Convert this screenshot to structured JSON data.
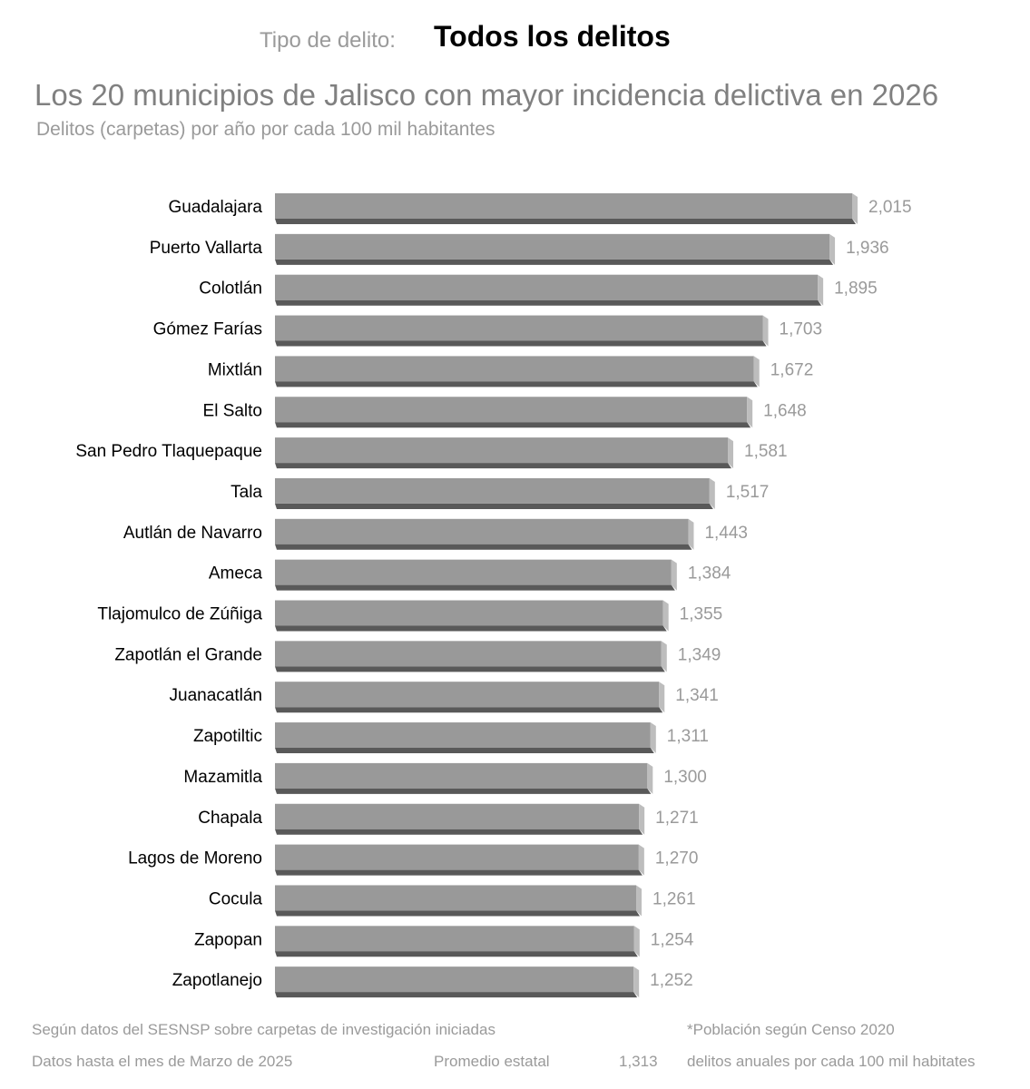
{
  "filter": {
    "label": "Tipo de delito:",
    "value": "Todos los delitos"
  },
  "chart_data": {
    "type": "bar",
    "orientation": "horizontal",
    "title": "Los 20 municipios de Jalisco con mayor incidencia delictiva en 2026",
    "subtitle": "Delitos (carpetas) por año por cada 100 mil habitantes",
    "categories": [
      "Guadalajara",
      "Puerto Vallarta",
      "Colotlán",
      "Gómez Farías",
      "Mixtlán",
      "El Salto",
      "San Pedro Tlaquepaque",
      "Tala",
      "Autlán de Navarro",
      "Ameca",
      "Tlajomulco de Zúñiga",
      "Zapotlán el Grande",
      "Juanacatlán",
      "Zapotiltic",
      "Mazamitla",
      "Chapala",
      "Lagos de Moreno",
      "Cocula",
      "Zapopan",
      "Zapotlanejo"
    ],
    "values": [
      2015,
      1936,
      1895,
      1703,
      1672,
      1648,
      1581,
      1517,
      1443,
      1384,
      1355,
      1349,
      1341,
      1311,
      1300,
      1271,
      1270,
      1261,
      1254,
      1252
    ],
    "value_labels": [
      "2,015",
      "1,936",
      "1,895",
      "1,703",
      "1,672",
      "1,648",
      "1,581",
      "1,517",
      "1,443",
      "1,384",
      "1,355",
      "1,349",
      "1,341",
      "1,311",
      "1,300",
      "1,271",
      "1,270",
      "1,261",
      "1,254",
      "1,252"
    ],
    "xlim": [
      0,
      2015
    ],
    "grid": false,
    "legend": "none",
    "colors": {
      "bar_face": "#999999",
      "bar_shadow": "#595959",
      "bar_side": "#bdbdbd",
      "category_text": "#000000",
      "value_text": "#9a9a9a"
    }
  },
  "footer": {
    "source": "Según datos  del SESNSP sobre carpetas de investigación iniciadas",
    "population_note": "*Población según Censo 2020",
    "data_until": "Datos hasta el mes de Marzo de 2025",
    "average_label": "Promedio estatal",
    "average_value": "1,313",
    "average_unit": "delitos anuales por cada 100 mil habitates"
  }
}
